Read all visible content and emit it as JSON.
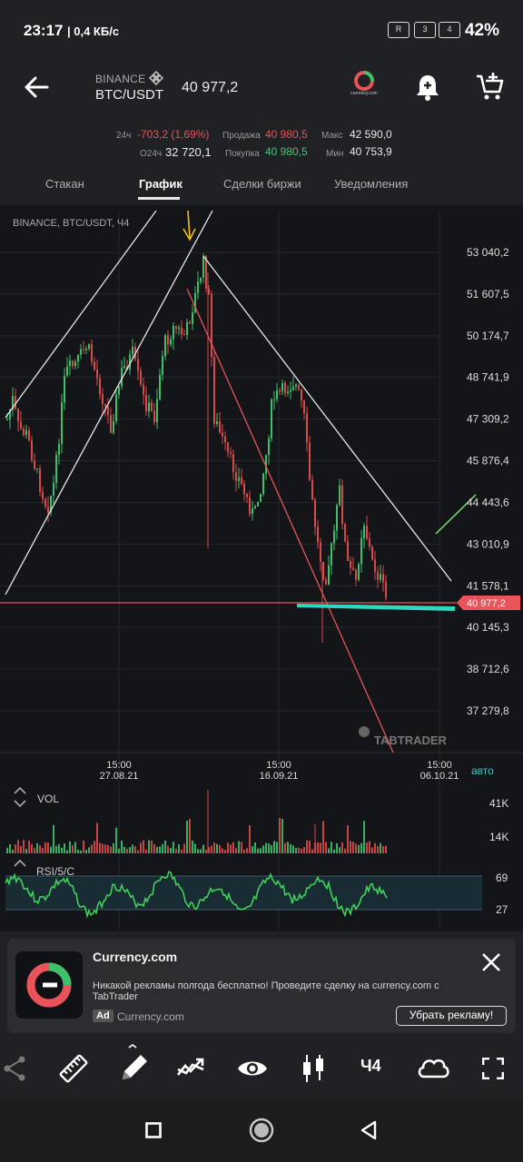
{
  "status_bar": {
    "time": "23:17",
    "speed": "| 0,4 КБ/с",
    "battery": "42%",
    "sim1": "R",
    "sim2": "3",
    "sim3": "4"
  },
  "header": {
    "exchange": "BINANCE",
    "pair": "BTC/USDT",
    "price": "40 977,2",
    "brand_logo_text": "currency.com"
  },
  "stats": {
    "change_label": "24ч",
    "change_value": "-703,2 (1,69%)",
    "volume_label": "O24ч",
    "volume_value": "32 720,1",
    "sell_label": "Продажа",
    "sell_value": "40 980,5",
    "buy_label": "Покупка",
    "buy_value": "40 980,5",
    "max_label": "Макс",
    "max_value": "42 590,0",
    "min_label": "Мин",
    "min_value": "40 753,9"
  },
  "tabs": [
    {
      "label": "Стакан"
    },
    {
      "label": "График"
    },
    {
      "label": "Сделки биржи"
    },
    {
      "label": "Уведомления"
    }
  ],
  "chart_data": {
    "type": "candlestick",
    "title": "BINANCE, BTC/USDT, Ч4",
    "y_ticks": [
      "53 040,2",
      "51 607,5",
      "50 174,7",
      "48 741,9",
      "47 309,2",
      "45 876,4",
      "44 443,6",
      "43 010,9",
      "41 578,1",
      "40 145,3",
      "38 712,6",
      "37 279,8"
    ],
    "x_ticks": [
      {
        "time": "15:00",
        "date": "27.08.21"
      },
      {
        "time": "15:00",
        "date": "16.09.21"
      },
      {
        "time": "15:00",
        "date": "06.10.21"
      }
    ],
    "current_price_label": "40 977,2",
    "auto_label": "авто",
    "watermark": "TABTRADER",
    "vol_label": "VOL",
    "vol_ticks": [
      "41K",
      "14K"
    ],
    "rsi_label": "RSI/5/C",
    "rsi_ticks": [
      "69",
      "27"
    ],
    "colors": {
      "up": "#3fbf6a",
      "down": "#d94a4a",
      "rsi": "#3fd05a",
      "price_line": "#e8545a",
      "support": "#2fd6c0"
    }
  },
  "ad": {
    "title": "Currency.com",
    "text": "Никакой рекламы полгода бесплатно! Проведите сделку на currency.com с TabTrader",
    "tag": "Ad",
    "source": "Currency.com",
    "button": "Убрать рекламу!"
  },
  "toolbar": {
    "timeframe": "Ч4"
  }
}
